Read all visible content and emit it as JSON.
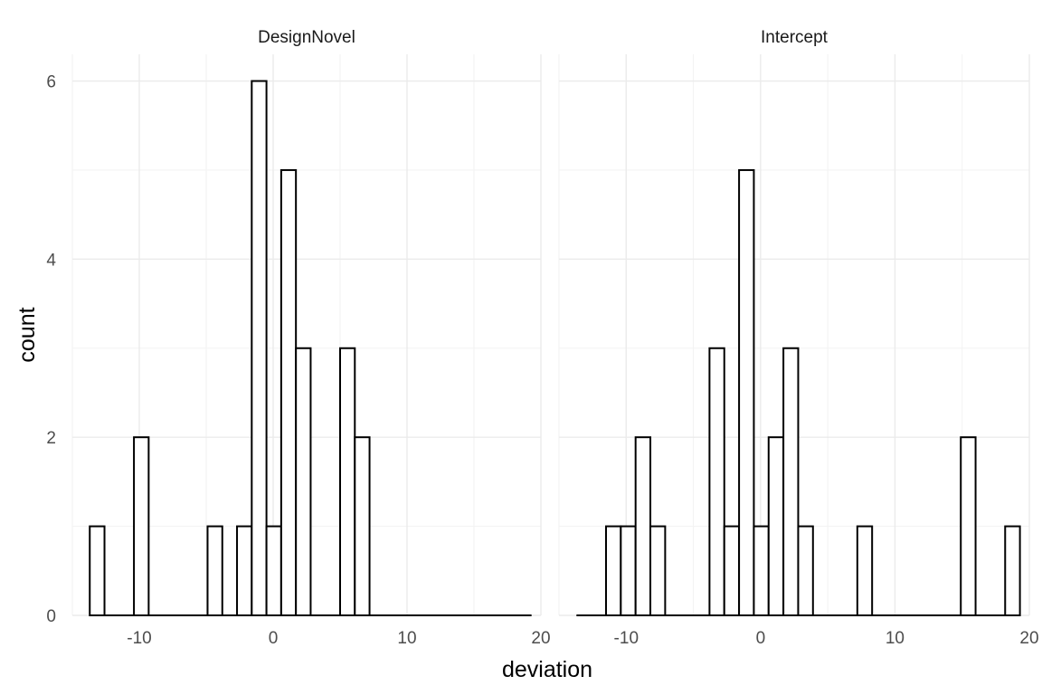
{
  "chart_data": {
    "type": "bar",
    "xlabel": "deviation",
    "ylabel": "count",
    "xlim": [
      -15,
      20
    ],
    "ylim": [
      0,
      6.3
    ],
    "x_ticks": [
      -10,
      0,
      10,
      20
    ],
    "y_ticks": [
      0,
      2,
      4,
      6
    ],
    "grid": true,
    "bin_width": 1.1,
    "panels": [
      {
        "title": "DesignNovel",
        "bins": [
          {
            "x0": -13.7,
            "x1": -12.6,
            "count": 1
          },
          {
            "x0": -12.6,
            "x1": -11.5,
            "count": 0
          },
          {
            "x0": -11.5,
            "x1": -10.4,
            "count": 0
          },
          {
            "x0": -10.4,
            "x1": -9.3,
            "count": 2
          },
          {
            "x0": -9.3,
            "x1": -8.2,
            "count": 0
          },
          {
            "x0": -8.2,
            "x1": -7.1,
            "count": 0
          },
          {
            "x0": -7.1,
            "x1": -6.0,
            "count": 0
          },
          {
            "x0": -6.0,
            "x1": -4.9,
            "count": 0
          },
          {
            "x0": -4.9,
            "x1": -3.8,
            "count": 1
          },
          {
            "x0": -3.8,
            "x1": -2.7,
            "count": 0
          },
          {
            "x0": -2.7,
            "x1": -1.6,
            "count": 1
          },
          {
            "x0": -1.6,
            "x1": -0.5,
            "count": 6
          },
          {
            "x0": -0.5,
            "x1": 0.6,
            "count": 1
          },
          {
            "x0": 0.6,
            "x1": 1.7,
            "count": 5
          },
          {
            "x0": 1.7,
            "x1": 2.8,
            "count": 3
          },
          {
            "x0": 2.8,
            "x1": 3.9,
            "count": 0
          },
          {
            "x0": 3.9,
            "x1": 5.0,
            "count": 0
          },
          {
            "x0": 5.0,
            "x1": 6.1,
            "count": 3
          },
          {
            "x0": 6.1,
            "x1": 7.2,
            "count": 2
          },
          {
            "x0": 7.2,
            "x1": 8.3,
            "count": 0
          },
          {
            "x0": 8.3,
            "x1": 9.4,
            "count": 0
          },
          {
            "x0": 9.4,
            "x1": 10.5,
            "count": 0
          },
          {
            "x0": 10.5,
            "x1": 11.6,
            "count": 0
          },
          {
            "x0": 11.6,
            "x1": 12.7,
            "count": 0
          },
          {
            "x0": 12.7,
            "x1": 13.8,
            "count": 0
          },
          {
            "x0": 13.8,
            "x1": 14.9,
            "count": 0
          },
          {
            "x0": 14.9,
            "x1": 16.0,
            "count": 0
          },
          {
            "x0": 16.0,
            "x1": 17.1,
            "count": 0
          },
          {
            "x0": 17.1,
            "x1": 18.2,
            "count": 0
          },
          {
            "x0": 18.2,
            "x1": 19.3,
            "count": 0
          }
        ]
      },
      {
        "title": "Intercept",
        "bins": [
          {
            "x0": -13.7,
            "x1": -12.6,
            "count": 0
          },
          {
            "x0": -12.6,
            "x1": -11.5,
            "count": 0
          },
          {
            "x0": -11.5,
            "x1": -10.4,
            "count": 1
          },
          {
            "x0": -10.4,
            "x1": -9.3,
            "count": 1
          },
          {
            "x0": -9.3,
            "x1": -8.2,
            "count": 2
          },
          {
            "x0": -8.2,
            "x1": -7.1,
            "count": 1
          },
          {
            "x0": -7.1,
            "x1": -6.0,
            "count": 0
          },
          {
            "x0": -6.0,
            "x1": -4.9,
            "count": 0
          },
          {
            "x0": -4.9,
            "x1": -3.8,
            "count": 0
          },
          {
            "x0": -3.8,
            "x1": -2.7,
            "count": 3
          },
          {
            "x0": -2.7,
            "x1": -1.6,
            "count": 1
          },
          {
            "x0": -1.6,
            "x1": -0.5,
            "count": 5
          },
          {
            "x0": -0.5,
            "x1": 0.6,
            "count": 1
          },
          {
            "x0": 0.6,
            "x1": 1.7,
            "count": 2
          },
          {
            "x0": 1.7,
            "x1": 2.8,
            "count": 3
          },
          {
            "x0": 2.8,
            "x1": 3.9,
            "count": 1
          },
          {
            "x0": 3.9,
            "x1": 5.0,
            "count": 0
          },
          {
            "x0": 5.0,
            "x1": 6.1,
            "count": 0
          },
          {
            "x0": 6.1,
            "x1": 7.2,
            "count": 0
          },
          {
            "x0": 7.2,
            "x1": 8.3,
            "count": 1
          },
          {
            "x0": 8.3,
            "x1": 9.4,
            "count": 0
          },
          {
            "x0": 9.4,
            "x1": 10.5,
            "count": 0
          },
          {
            "x0": 10.5,
            "x1": 11.6,
            "count": 0
          },
          {
            "x0": 11.6,
            "x1": 12.7,
            "count": 0
          },
          {
            "x0": 12.7,
            "x1": 13.8,
            "count": 0
          },
          {
            "x0": 13.8,
            "x1": 14.9,
            "count": 0
          },
          {
            "x0": 14.9,
            "x1": 16.0,
            "count": 2
          },
          {
            "x0": 16.0,
            "x1": 17.1,
            "count": 0
          },
          {
            "x0": 17.1,
            "x1": 18.2,
            "count": 0
          },
          {
            "x0": 18.2,
            "x1": 19.3,
            "count": 1
          }
        ]
      }
    ]
  }
}
